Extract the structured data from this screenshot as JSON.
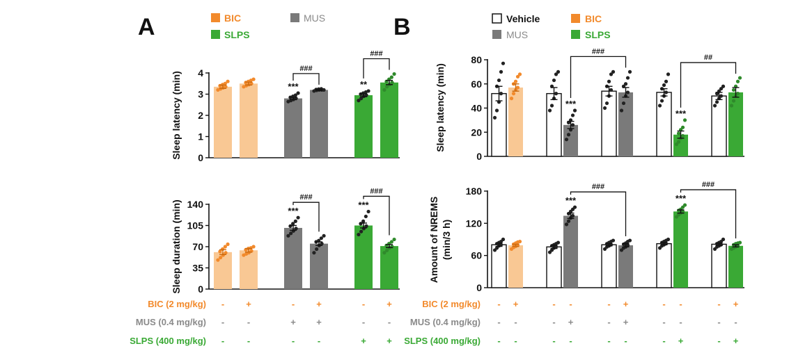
{
  "panels": [
    {
      "letter": "A",
      "legend": [
        {
          "label": "BIC",
          "color": "#f28a2c",
          "text_color": "#f28a2c"
        },
        {
          "label": "MUS",
          "color": "#7a7a7a",
          "text_color": "#8a8a8a"
        },
        {
          "label": "SLPS",
          "color": "#3aa935",
          "text_color": "#3aa935"
        }
      ],
      "conditions": [
        {
          "label": "BIC (2 mg/kg)",
          "color": "#f28a2c",
          "signs": [
            "-",
            "+",
            "-",
            "+",
            "-",
            "+"
          ]
        },
        {
          "label": "MUS (0.4 mg/kg)",
          "color": "#8a8a8a",
          "signs": [
            "-",
            "-",
            "+",
            "+",
            "-",
            "-"
          ]
        },
        {
          "label": "SLPS (400 mg/kg)",
          "color": "#3aa935",
          "signs": [
            "-",
            "-",
            "-",
            "-",
            "+",
            "+"
          ]
        }
      ]
    },
    {
      "letter": "B",
      "legend": [
        {
          "label": "Vehicle",
          "color": "#ffffff",
          "text_color": "#111111"
        },
        {
          "label": "BIC",
          "color": "#f28a2c",
          "text_color": "#f28a2c"
        },
        {
          "label": "MUS",
          "color": "#7a7a7a",
          "text_color": "#8a8a8a"
        },
        {
          "label": "SLPS",
          "color": "#3aa935",
          "text_color": "#3aa935"
        }
      ],
      "conditions": [
        {
          "label": "BIC (2 mg/kg)",
          "color": "#f28a2c",
          "signs": [
            "-",
            "+",
            "-",
            "-",
            "-",
            "+",
            "-",
            "-",
            "-",
            "+"
          ]
        },
        {
          "label": "MUS (0.4 mg/kg)",
          "color": "#8a8a8a",
          "signs": [
            "-",
            "-",
            "-",
            "+",
            "-",
            "+",
            "-",
            "-",
            "-",
            "-"
          ]
        },
        {
          "label": "SLPS (400 mg/kg)",
          "color": "#3aa935",
          "signs": [
            "-",
            "-",
            "-",
            "-",
            "-",
            "-",
            "-",
            "+",
            "-",
            "+"
          ]
        }
      ]
    }
  ],
  "chart_data": [
    {
      "id": "A-latency",
      "panel": "A",
      "type": "bar",
      "ylabel": "Sleep latency (min)",
      "ylim": [
        0,
        4
      ],
      "yticks": [
        0,
        1,
        2,
        3,
        4
      ],
      "categories": [
        "1",
        "2",
        "3",
        "4",
        "5",
        "6"
      ],
      "values": [
        3.35,
        3.5,
        2.8,
        3.2,
        2.95,
        3.55
      ],
      "errors": [
        0.08,
        0.07,
        0.05,
        0.03,
        0.07,
        0.1
      ],
      "colors": [
        "#f9c894",
        "#f9c894",
        "#7a7a7a",
        "#7a7a7a",
        "#3aa935",
        "#3aa935"
      ],
      "outlined": [
        false,
        false,
        false,
        false,
        false,
        false
      ],
      "points": [
        [
          3.2,
          3.25,
          3.3,
          3.35,
          3.4,
          3.45,
          3.5,
          3.6
        ],
        [
          3.35,
          3.4,
          3.45,
          3.5,
          3.55,
          3.6,
          3.65,
          3.7
        ],
        [
          2.65,
          2.7,
          2.75,
          2.8,
          2.85,
          2.9,
          2.95,
          3.05
        ],
        [
          3.15,
          3.18,
          3.2,
          3.2,
          3.22,
          3.24,
          3.25,
          3.2
        ],
        [
          2.7,
          2.8,
          2.9,
          2.95,
          3.0,
          3.05,
          3.1,
          3.15
        ],
        [
          3.2,
          3.35,
          3.45,
          3.55,
          3.6,
          3.7,
          3.8,
          3.95
        ]
      ],
      "point_colors": [
        "#f28a2c",
        "#f28a2c",
        "#222222",
        "#222222",
        "#222222",
        "#2f8a2b"
      ],
      "stars": [
        "",
        "",
        "***",
        "",
        "**",
        ""
      ],
      "brackets": [
        {
          "from": 2,
          "to": 3,
          "label": "###"
        },
        {
          "from": 4,
          "to": 5,
          "label": "###"
        }
      ]
    },
    {
      "id": "A-duration",
      "panel": "A",
      "type": "bar",
      "ylabel": "Sleep duration (min)",
      "ylim": [
        0,
        140
      ],
      "yticks": [
        0,
        35,
        70,
        105,
        140
      ],
      "categories": [
        "1",
        "2",
        "3",
        "4",
        "5",
        "6"
      ],
      "values": [
        61,
        64,
        101,
        75,
        105,
        71
      ],
      "errors": [
        4,
        3,
        4,
        3,
        4,
        2.5
      ],
      "colors": [
        "#f9c894",
        "#f9c894",
        "#7a7a7a",
        "#7a7a7a",
        "#3aa935",
        "#3aa935"
      ],
      "outlined": [
        false,
        false,
        false,
        false,
        false,
        false
      ],
      "points": [
        [
          48,
          52,
          56,
          60,
          62,
          66,
          70,
          74
        ],
        [
          56,
          58,
          60,
          63,
          65,
          67,
          68,
          70
        ],
        [
          88,
          92,
          96,
          100,
          104,
          108,
          112,
          118
        ],
        [
          60,
          66,
          72,
          75,
          78,
          80,
          84,
          88
        ],
        [
          90,
          95,
          100,
          104,
          108,
          112,
          120,
          128
        ],
        [
          60,
          64,
          68,
          70,
          72,
          75,
          78,
          82
        ]
      ],
      "point_colors": [
        "#f28a2c",
        "#f28a2c",
        "#222222",
        "#222222",
        "#222222",
        "#2f8a2b"
      ],
      "stars": [
        "",
        "",
        "***",
        "",
        "***",
        ""
      ],
      "brackets": [
        {
          "from": 2,
          "to": 3,
          "label": "###"
        },
        {
          "from": 4,
          "to": 5,
          "label": "###"
        }
      ]
    },
    {
      "id": "B-latency",
      "panel": "B",
      "type": "bar",
      "ylabel": "Sleep latency (min)",
      "ylim": [
        0,
        80
      ],
      "yticks": [
        0,
        20,
        40,
        60,
        80
      ],
      "categories": [
        "1",
        "2",
        "3",
        "4",
        "5",
        "6",
        "7",
        "8",
        "9",
        "10"
      ],
      "values": [
        52,
        57,
        52,
        26,
        54,
        53,
        53,
        18,
        50,
        53
      ],
      "errors": [
        6,
        3,
        5,
        3,
        4,
        4,
        3,
        3,
        3,
        4
      ],
      "colors": [
        "#ffffff",
        "#f9c894",
        "#ffffff",
        "#7a7a7a",
        "#ffffff",
        "#7a7a7a",
        "#ffffff",
        "#3aa935",
        "#ffffff",
        "#3aa935"
      ],
      "outlined": [
        true,
        false,
        true,
        false,
        true,
        false,
        true,
        false,
        true,
        false
      ],
      "points": [
        [
          32,
          38,
          45,
          52,
          58,
          63,
          70,
          77
        ],
        [
          48,
          52,
          55,
          57,
          60,
          62,
          66,
          68
        ],
        [
          38,
          42,
          48,
          52,
          58,
          63,
          68,
          70
        ],
        [
          14,
          18,
          22,
          26,
          28,
          30,
          34,
          38
        ],
        [
          40,
          44,
          50,
          55,
          58,
          62,
          68,
          70
        ],
        [
          38,
          44,
          50,
          53,
          58,
          60,
          65,
          70
        ],
        [
          42,
          46,
          50,
          53,
          56,
          59,
          62,
          68
        ],
        [
          10,
          12,
          15,
          17,
          19,
          22,
          24,
          30
        ],
        [
          42,
          45,
          48,
          50,
          52,
          54,
          56,
          58
        ],
        [
          42,
          46,
          50,
          52,
          55,
          58,
          62,
          65
        ]
      ],
      "point_colors": [
        "#222222",
        "#f28a2c",
        "#222222",
        "#222222",
        "#222222",
        "#222222",
        "#222222",
        "#2f8a2b",
        "#222222",
        "#2f8a2b"
      ],
      "stars": [
        "",
        "",
        "",
        "***",
        "",
        "",
        "",
        "***",
        "",
        ""
      ],
      "brackets": [
        {
          "from": 3,
          "to": 5,
          "label": "###"
        },
        {
          "from": 7,
          "to": 9,
          "label": "##"
        }
      ]
    },
    {
      "id": "B-nrems",
      "panel": "B",
      "type": "bar",
      "ylabel": "Amount of NREMS (min/3 h)",
      "ylim": [
        0,
        180
      ],
      "yticks": [
        0,
        60,
        120,
        180
      ],
      "categories": [
        "1",
        "2",
        "3",
        "4",
        "5",
        "6",
        "7",
        "8",
        "9",
        "10"
      ],
      "values": [
        80,
        79,
        76,
        134,
        80,
        79,
        82,
        142,
        81,
        78
      ],
      "errors": [
        3,
        2,
        3,
        5,
        2,
        3,
        2,
        3,
        2,
        2
      ],
      "colors": [
        "#ffffff",
        "#f9c894",
        "#ffffff",
        "#7a7a7a",
        "#ffffff",
        "#7a7a7a",
        "#ffffff",
        "#3aa935",
        "#ffffff",
        "#3aa935"
      ],
      "outlined": [
        true,
        false,
        true,
        false,
        true,
        false,
        true,
        false,
        true,
        false
      ],
      "points": [
        [
          70,
          74,
          78,
          80,
          82,
          84,
          86,
          90
        ],
        [
          72,
          75,
          77,
          79,
          81,
          83,
          85,
          86
        ],
        [
          66,
          70,
          74,
          76,
          78,
          80,
          82,
          84
        ],
        [
          118,
          124,
          130,
          134,
          138,
          142,
          146,
          150
        ],
        [
          72,
          76,
          78,
          80,
          82,
          84,
          86,
          88
        ],
        [
          70,
          74,
          76,
          79,
          81,
          83,
          86,
          88
        ],
        [
          74,
          78,
          80,
          82,
          84,
          86,
          88,
          90
        ],
        [
          132,
          136,
          139,
          142,
          144,
          146,
          150,
          154
        ],
        [
          72,
          76,
          78,
          80,
          82,
          84,
          86,
          90
        ],
        [
          72,
          74,
          76,
          78,
          80,
          82,
          83,
          84
        ]
      ],
      "point_colors": [
        "#222222",
        "#f28a2c",
        "#222222",
        "#222222",
        "#222222",
        "#222222",
        "#222222",
        "#2f8a2b",
        "#222222",
        "#2f8a2b"
      ],
      "stars": [
        "",
        "",
        "",
        "***",
        "",
        "",
        "",
        "***",
        "",
        ""
      ],
      "brackets": [
        {
          "from": 3,
          "to": 5,
          "label": "###"
        },
        {
          "from": 7,
          "to": 9,
          "label": "###"
        }
      ]
    }
  ]
}
